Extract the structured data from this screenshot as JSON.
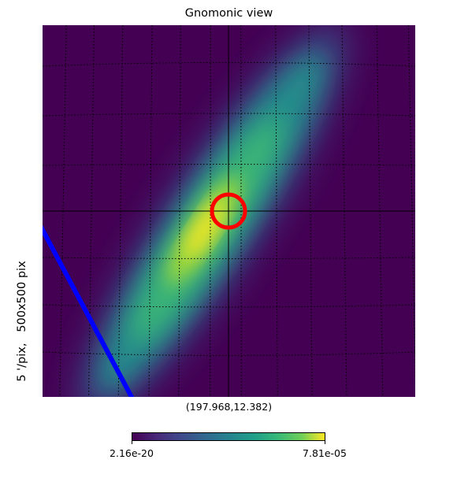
{
  "chart_data": {
    "type": "heatmap",
    "title": "Gnomonic view",
    "side_label": "5 '/pix,   500x500 pix",
    "center_coordinates": "(197.968,12.382)",
    "colormap": "viridis",
    "colorbar": {
      "min_label": "2.16e-20",
      "max_label": "7.81e-05"
    },
    "graticule": "dotted",
    "markers": [
      {
        "name": "circle",
        "color": "#ff0000"
      },
      {
        "name": "line",
        "color": "#0000ff"
      }
    ]
  }
}
